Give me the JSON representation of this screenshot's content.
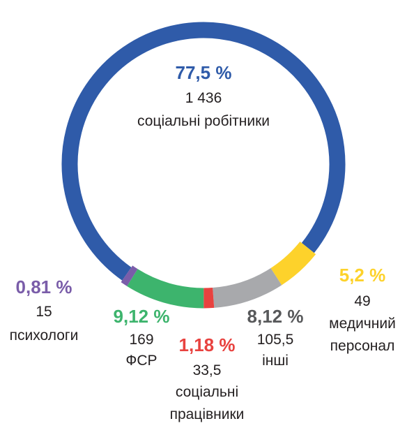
{
  "chart_data": {
    "type": "donut",
    "categories": [
      [
        "соціальні робітники"
      ],
      [
        "медичний",
        "персонал"
      ],
      [
        "інші"
      ],
      [
        "соціальні",
        "працівники"
      ],
      [
        "ФСР"
      ],
      [
        "психологи"
      ]
    ],
    "values": [
      77.5,
      5.2,
      8.12,
      1.18,
      9.12,
      0.81
    ],
    "value_labels": [
      "77,5 %",
      "5,2 %",
      "8,12 %",
      "1,18 %",
      "9,12 %",
      "0,81 %"
    ],
    "counts": [
      1436,
      49,
      105.5,
      33.5,
      169,
      15
    ],
    "count_labels": [
      "1 436",
      "49",
      "105,5",
      "33,5",
      "169",
      "15"
    ],
    "colors": [
      "#2f5ba9",
      "#fdd22b",
      "#a8a9ac",
      "#e8423f",
      "#3db46d",
      "#7a5da9"
    ]
  }
}
